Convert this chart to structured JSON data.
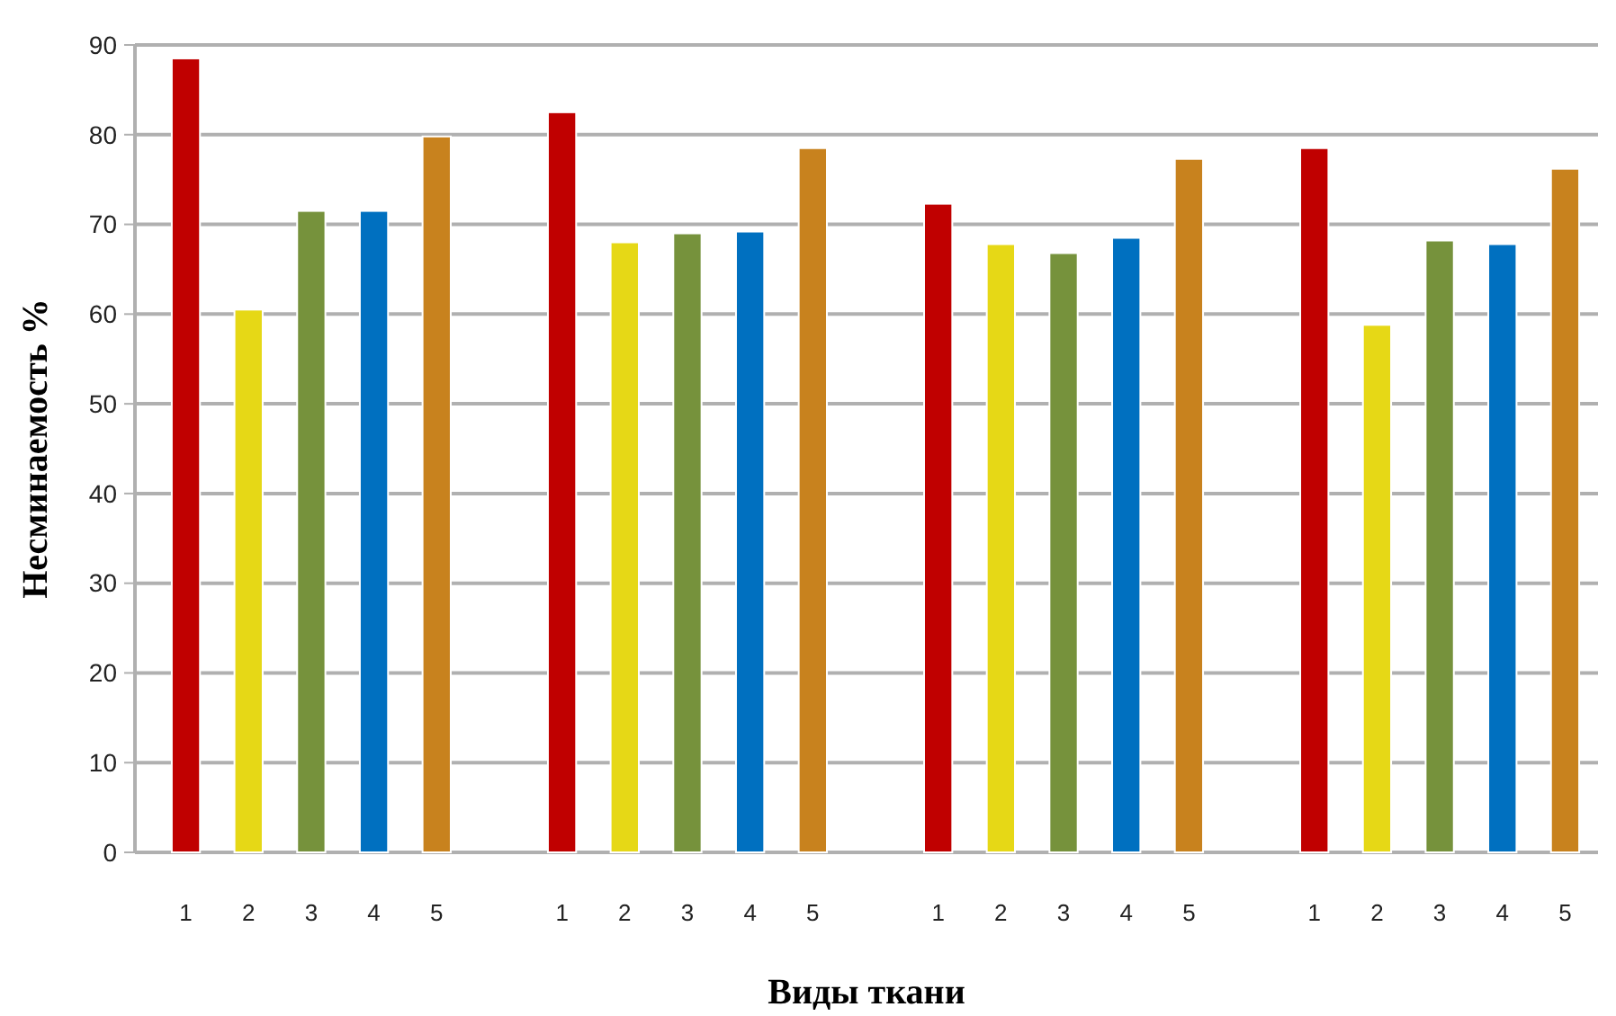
{
  "chart_data": {
    "type": "bar",
    "xlabel": "Виды ткани",
    "ylabel": "Несминаемость %",
    "categories": [
      "1",
      "2",
      "3",
      "4",
      "5",
      null,
      "1",
      "2",
      "3",
      "4",
      "5",
      null,
      "1",
      "2",
      "3",
      "4",
      "5",
      null,
      "1",
      "2",
      "3",
      "4",
      "5"
    ],
    "values": [
      88.5,
      60.5,
      71.5,
      71.5,
      79.8,
      null,
      82.5,
      68,
      69,
      69.2,
      78.5,
      null,
      72.3,
      67.8,
      66.8,
      68.5,
      77.3,
      null,
      78.5,
      58.8,
      68.2,
      67.8,
      76.2
    ],
    "colors": [
      "#c00000",
      "#e6d816",
      "#76923c",
      "#0070c0",
      "#c8821e",
      null,
      "#c00000",
      "#e6d816",
      "#76923c",
      "#0070c0",
      "#c8821e",
      null,
      "#c00000",
      "#e6d816",
      "#76923c",
      "#0070c0",
      "#c8821e",
      null,
      "#c00000",
      "#e6d816",
      "#76923c",
      "#0070c0",
      "#c8821e"
    ],
    "ylim": [
      0,
      90
    ],
    "yticks": [
      0,
      10,
      20,
      30,
      40,
      50,
      60,
      70,
      80,
      90
    ],
    "grid": "y"
  }
}
